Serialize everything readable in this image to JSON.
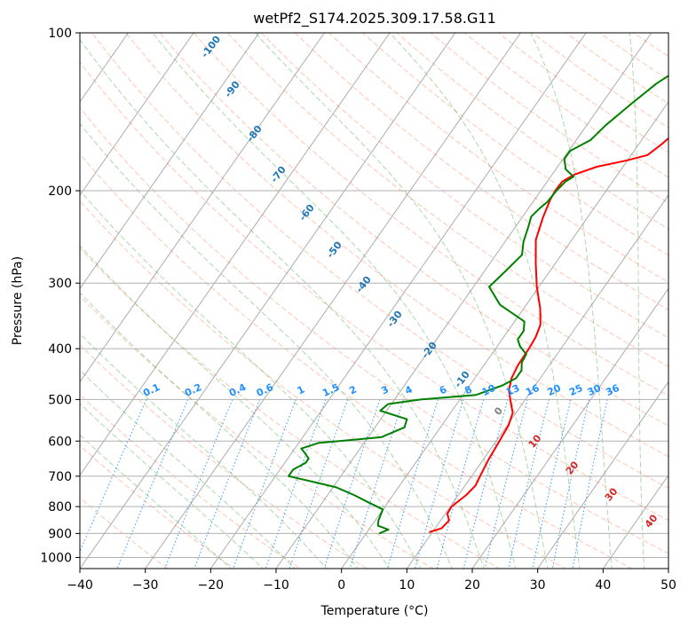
{
  "chart_data": {
    "type": "line",
    "diagram": "skew-T log-P",
    "title": "wetPf2_S174.2025.309.17.58.G11",
    "xlabel": "Temperature (°C)",
    "ylabel": "Pressure (hPa)",
    "xlim": [
      -40,
      50
    ],
    "ylim": [
      1050,
      100
    ],
    "y_scale": "log",
    "grid": true,
    "x_ticks": [
      -40,
      -30,
      -20,
      -10,
      0,
      10,
      20,
      30,
      40,
      50
    ],
    "x_tick_labels": [
      "−40",
      "−30",
      "−20",
      "−10",
      "0",
      "10",
      "20",
      "30",
      "40",
      "50"
    ],
    "y_ticks": [
      1000,
      900,
      800,
      700,
      600,
      500,
      400,
      300,
      200,
      100
    ],
    "y_tick_labels": [
      "1000",
      "900",
      "800",
      "700",
      "600",
      "500",
      "400",
      "300",
      "200",
      "100"
    ],
    "colors": {
      "temperature": "#ff0000",
      "dewpoint": "#008000",
      "dry_adiabat": "#ff7f50",
      "moist_adiabat": "#2ca02c",
      "mixing_ratio": "#1e90ff",
      "isotherm": "#808080",
      "dry_label": "#1f77b4",
      "moist_label": "#d62728",
      "mixing_label": "#1e90ff"
    },
    "series": [
      {
        "key": "temperature",
        "points": [
          [
            9.5,
            895
          ],
          [
            11,
            880
          ],
          [
            11.3,
            850
          ],
          [
            10.3,
            825
          ],
          [
            10.2,
            800
          ],
          [
            11.2,
            760
          ],
          [
            11.6,
            730
          ],
          [
            11.3,
            700
          ],
          [
            10.8,
            650
          ],
          [
            10.5,
            600
          ],
          [
            10.2,
            560
          ],
          [
            9.5,
            530
          ],
          [
            8,
            505
          ],
          [
            6.5,
            480
          ],
          [
            5.6,
            455
          ],
          [
            5.2,
            430
          ],
          [
            5.1,
            400
          ],
          [
            4.9,
            380
          ],
          [
            4.3,
            360
          ],
          [
            2.5,
            335
          ],
          [
            -0.3,
            305
          ],
          [
            -3,
            275
          ],
          [
            -5.5,
            248
          ],
          [
            -6.8,
            225
          ],
          [
            -7.6,
            208
          ],
          [
            -7.8,
            200
          ],
          [
            -7.7,
            192
          ],
          [
            -6.5,
            186
          ],
          [
            -4,
            180
          ],
          [
            0,
            175
          ],
          [
            2.5,
            171
          ],
          [
            3.5,
            163
          ],
          [
            4.8,
            150
          ],
          [
            6.8,
            140
          ],
          [
            9.5,
            131
          ],
          [
            11,
            122
          ],
          [
            13.5,
            114
          ],
          [
            13.8,
            110
          ],
          [
            15.5,
            106
          ],
          [
            19.2,
            100
          ]
        ]
      },
      {
        "key": "dewpoint",
        "points": [
          [
            2,
            900
          ],
          [
            3,
            885
          ],
          [
            1,
            870
          ],
          [
            0.5,
            850
          ],
          [
            0,
            810
          ],
          [
            -3,
            785
          ],
          [
            -6,
            760
          ],
          [
            -9.5,
            735
          ],
          [
            -13,
            720
          ],
          [
            -18,
            700
          ],
          [
            -18,
            680
          ],
          [
            -16.8,
            660
          ],
          [
            -16.8,
            648
          ],
          [
            -18,
            632
          ],
          [
            -19,
            620
          ],
          [
            -17,
            605
          ],
          [
            -8,
            590
          ],
          [
            -5.5,
            565
          ],
          [
            -6,
            545
          ],
          [
            -11,
            525
          ],
          [
            -10.5,
            510
          ],
          [
            -6,
            500
          ],
          [
            2,
            490
          ],
          [
            5,
            470
          ],
          [
            6.3,
            455
          ],
          [
            6.3,
            440
          ],
          [
            5.5,
            425
          ],
          [
            5.3,
            410
          ],
          [
            3.5,
            396
          ],
          [
            2.4,
            384
          ],
          [
            2.4,
            370
          ],
          [
            1.5,
            355
          ],
          [
            -4,
            330
          ],
          [
            -7.6,
            305
          ],
          [
            -6.8,
            285
          ],
          [
            -6,
            265
          ],
          [
            -7.2,
            250
          ],
          [
            -8,
            235
          ],
          [
            -8.7,
            224
          ],
          [
            -8.3,
            216
          ],
          [
            -7.8,
            210
          ],
          [
            -7.6,
            200
          ],
          [
            -7.2,
            192
          ],
          [
            -6.5,
            188
          ],
          [
            -8.5,
            182
          ],
          [
            -9.8,
            174
          ],
          [
            -9.8,
            168
          ],
          [
            -7.8,
            160
          ],
          [
            -7.1,
            150
          ],
          [
            -5.4,
            136
          ],
          [
            -3.8,
            125
          ],
          [
            -2.1,
            118
          ],
          [
            -0.4,
            112
          ],
          [
            1.5,
            106
          ],
          [
            2.8,
            100
          ]
        ]
      }
    ],
    "dry_adiabat_labels": [
      "-100",
      "-90",
      "-80",
      "-70",
      "-60",
      "-50",
      "-40",
      "-30",
      "-20",
      "-10"
    ],
    "moist_adiabat_labels": [
      "0",
      "10",
      "20",
      "30",
      "40"
    ],
    "mixing_ratio_labels": [
      "0.1",
      "0.2",
      "0.4",
      "0.6",
      "1",
      "1.5",
      "2",
      "3",
      "4",
      "6",
      "8",
      "10",
      "13",
      "16",
      "20",
      "25",
      "30",
      "36"
    ]
  }
}
